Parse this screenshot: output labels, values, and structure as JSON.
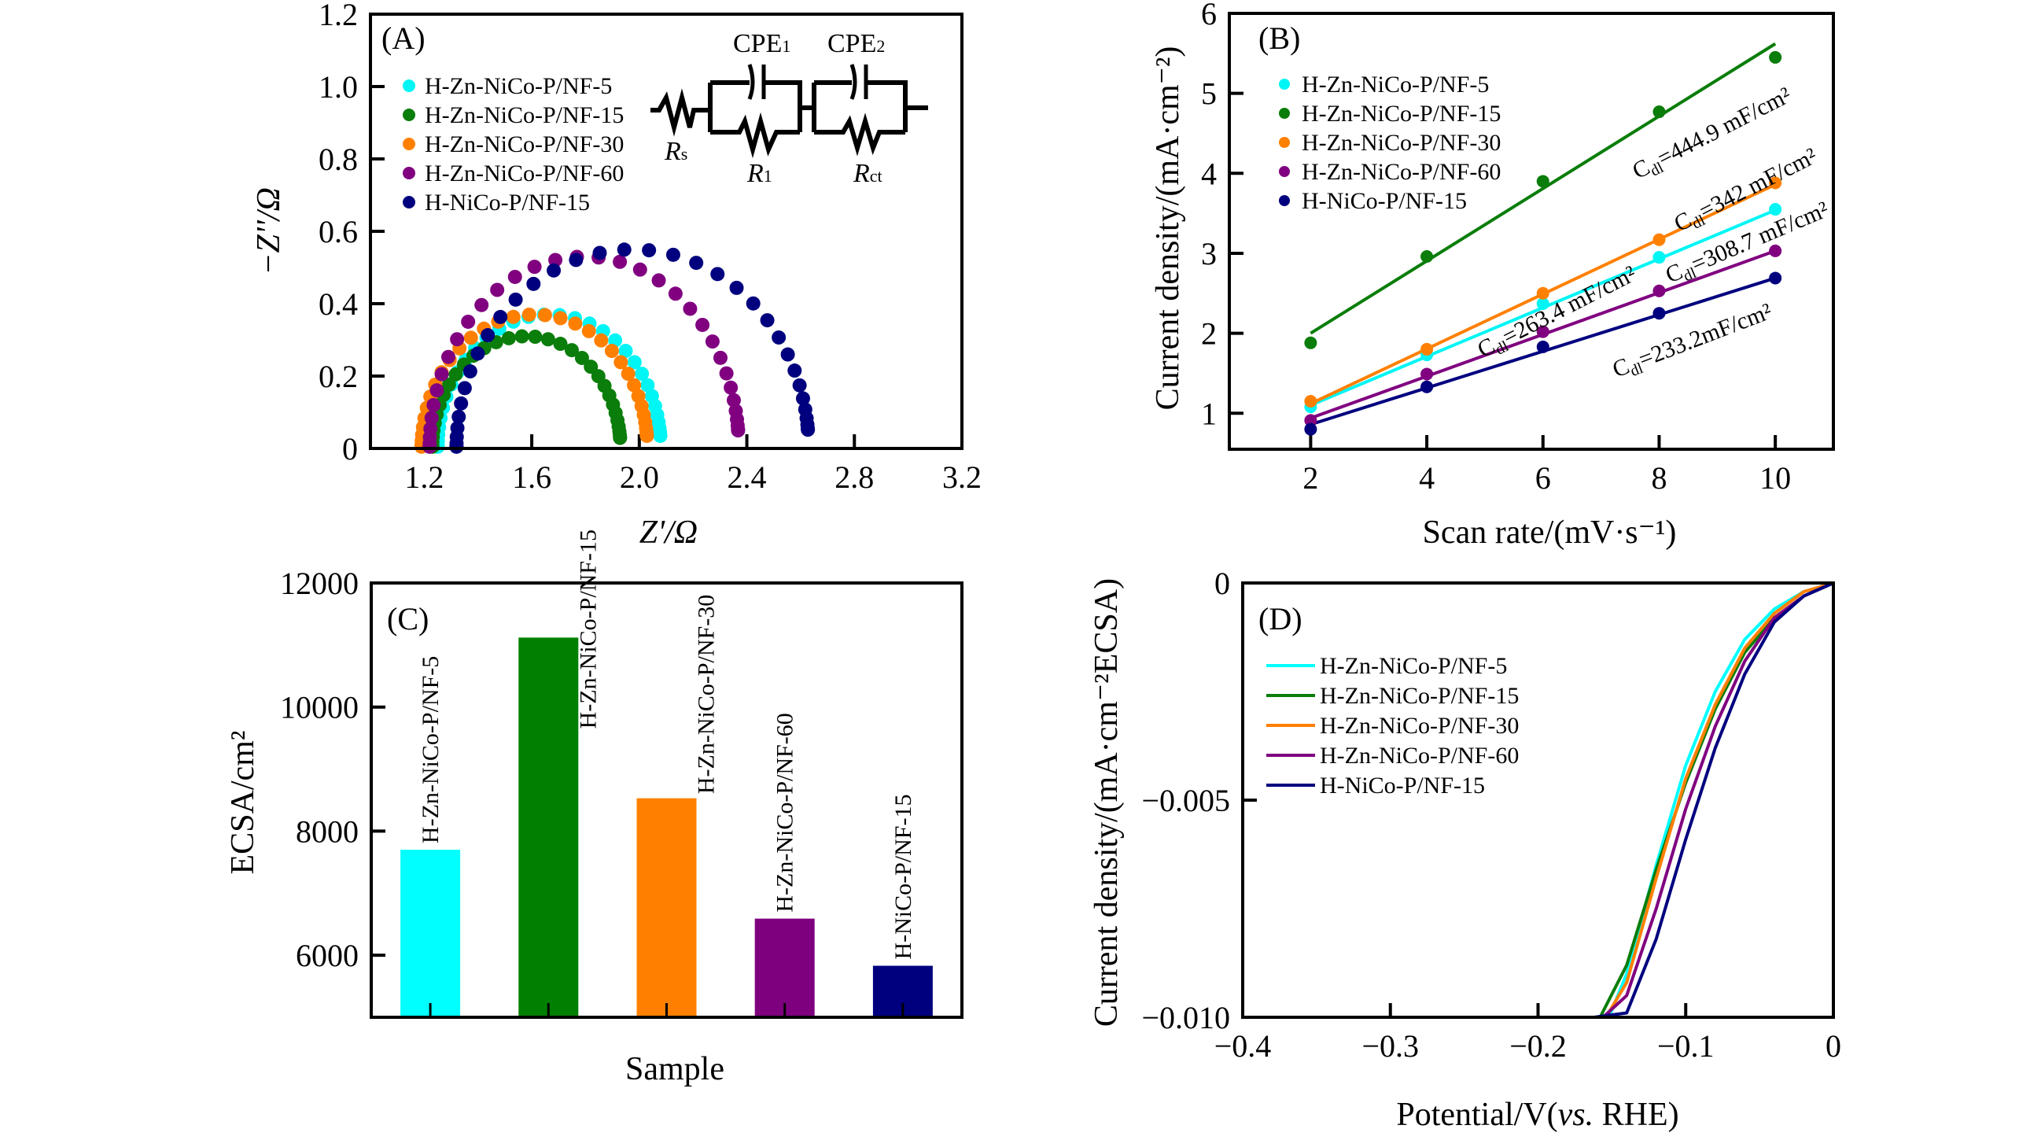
{
  "figure": {
    "series_names": [
      "H-Zn-NiCo-P/NF-5",
      "H-Zn-NiCo-P/NF-15",
      "H-Zn-NiCo-P/NF-30",
      "H-Zn-NiCo-P/NF-60",
      "H-NiCo-P/NF-15"
    ],
    "series_colors": [
      "#00f5f5",
      "#0a7d0a",
      "#ff8000",
      "#800080",
      "#00007f"
    ]
  },
  "chart_data": [
    {
      "id": "A",
      "type": "scatter",
      "panel_label": "(A)",
      "title": "",
      "xlabel": "Z'/Ω",
      "ylabel": "−Z''/Ω",
      "xlim": [
        1.0,
        3.2
      ],
      "ylim": [
        0,
        1.2
      ],
      "xticks": [
        "1.2",
        "1.6",
        "2.0",
        "2.4",
        "2.8",
        "3.2"
      ],
      "xtick_values": [
        1.2,
        1.6,
        2.0,
        2.4,
        2.8,
        3.2
      ],
      "yticks": [
        "0",
        "0.2",
        "0.4",
        "0.6",
        "0.8",
        "1.0",
        "1.2"
      ],
      "ytick_values": [
        0,
        0.2,
        0.4,
        0.6,
        0.8,
        1.0,
        1.2
      ],
      "grid": false,
      "legend": "top-left",
      "circuit": {
        "labels": [
          "CPE1",
          "CPE2",
          "Rs",
          "R1",
          "Rct"
        ],
        "cpe1_main": "CPE",
        "cpe1_sub": "1",
        "cpe2_main": "CPE",
        "cpe2_sub": "2",
        "rs_main": "R",
        "rs_sub": "s",
        "r1_main": "R",
        "r1_sub": "1",
        "rct_main": "R",
        "rct_sub": "ct"
      },
      "series": [
        {
          "name": "H-Zn-NiCo-P/NF-5",
          "color": "#00f5f5",
          "arc": {
            "z_start": 1.25,
            "z_end": 2.08,
            "peak": 0.37
          }
        },
        {
          "name": "H-Zn-NiCo-P/NF-15",
          "color": "#0a7d0a",
          "arc": {
            "z_start": 1.23,
            "z_end": 1.93,
            "peak": 0.31
          }
        },
        {
          "name": "H-Zn-NiCo-P/NF-30",
          "color": "#ff8000",
          "arc": {
            "z_start": 1.19,
            "z_end": 2.03,
            "peak": 0.37
          }
        },
        {
          "name": "H-Zn-NiCo-P/NF-60",
          "color": "#800080",
          "arc": {
            "z_start": 1.22,
            "z_end": 2.37,
            "peak": 0.53
          }
        },
        {
          "name": "H-NiCo-P/NF-15",
          "color": "#00007f",
          "arc": {
            "z_start": 1.32,
            "z_end": 2.63,
            "peak": 0.55
          }
        }
      ]
    },
    {
      "id": "B",
      "type": "scatter",
      "panel_label": "(B)",
      "title": "",
      "xlabel": "Scan rate/(mV·s⁻¹)",
      "ylabel": "Current density/(mA·cm⁻²)",
      "xlim": [
        0.6,
        11
      ],
      "ylim": [
        0.55,
        6
      ],
      "xticks": [
        "2",
        "4",
        "6",
        "8",
        "10"
      ],
      "xtick_values": [
        2,
        4,
        6,
        8,
        10
      ],
      "yticks": [
        "1",
        "2",
        "3",
        "4",
        "5",
        "6"
      ],
      "ytick_values": [
        1,
        2,
        3,
        4,
        5,
        6
      ],
      "grid": false,
      "legend": "top-left",
      "x": [
        2,
        4,
        6,
        8,
        10
      ],
      "series": [
        {
          "name": "H-Zn-NiCo-P/NF-5",
          "color": "#00f5f5",
          "values": [
            1.08,
            1.73,
            2.37,
            2.95,
            3.55
          ],
          "fit": [
            1.1,
            3.54
          ],
          "annotation": "C",
          "annotation_sub": "dl",
          "annotation_rest": "=263.4 mF/cm²"
        },
        {
          "name": "H-Zn-NiCo-P/NF-15",
          "color": "#0a7d0a",
          "values": [
            1.88,
            2.96,
            3.9,
            4.77,
            5.45
          ],
          "fit": [
            2.0,
            5.62
          ],
          "annotation": "C",
          "annotation_sub": "dl",
          "annotation_rest": "=444.9 mF/cm²"
        },
        {
          "name": "H-Zn-NiCo-P/NF-30",
          "color": "#ff8000",
          "values": [
            1.15,
            1.8,
            2.5,
            3.17,
            3.88
          ],
          "fit": [
            1.12,
            3.86
          ],
          "annotation": "C",
          "annotation_sub": "dl",
          "annotation_rest": "=342 mF/cm²"
        },
        {
          "name": "H-Zn-NiCo-P/NF-60",
          "color": "#800080",
          "values": [
            0.91,
            1.49,
            2.02,
            2.53,
            3.03
          ],
          "fit": [
            0.94,
            3.03
          ],
          "annotation": "C",
          "annotation_sub": "dl",
          "annotation_rest": "=308.7 mF/cm²"
        },
        {
          "name": "H-NiCo-P/NF-15",
          "color": "#00007f",
          "values": [
            0.8,
            1.33,
            1.83,
            2.25,
            2.69
          ],
          "fit": [
            0.86,
            2.69
          ],
          "annotation": "C",
          "annotation_sub": "dl",
          "annotation_rest": "=233.2mF/cm²"
        }
      ]
    },
    {
      "id": "C",
      "type": "bar",
      "panel_label": "(C)",
      "title": "",
      "xlabel": "Sample",
      "ylabel": "ECSA/cm²",
      "ylim": [
        5000,
        12000
      ],
      "yticks": [
        "6000",
        "8000",
        "10000",
        "12000"
      ],
      "ytick_values": [
        6000,
        8000,
        10000,
        12000
      ],
      "grid": false,
      "categories": [
        "H-Zn-NiCo-P/NF-5",
        "H-Zn-NiCo-P/NF-15",
        "H-Zn-NiCo-P/NF-30",
        "H-Zn-NiCo-P/NF-60",
        "H-NiCo-P/NF-15"
      ],
      "values": [
        7700,
        11120,
        8530,
        6590,
        5830
      ],
      "colors": [
        "#00ffff",
        "#007f00",
        "#ff8000",
        "#7f007f",
        "#00007f"
      ]
    },
    {
      "id": "D",
      "type": "line",
      "panel_label": "(D)",
      "title": "",
      "xlabel": "Potential/V(vs. RHE)",
      "xlabel_main": "Potential/V(",
      "xlabel_italic": "vs.",
      "xlabel_end": " RHE)",
      "ylabel": "Current density/(mA·cm⁻²ECSA)",
      "xlim": [
        -0.4,
        0
      ],
      "ylim": [
        -0.01,
        0
      ],
      "xticks": [
        "−0.4",
        "−0.3",
        "−0.2",
        "−0.1",
        "0"
      ],
      "xtick_values": [
        -0.4,
        -0.3,
        -0.2,
        -0.1,
        0
      ],
      "yticks": [
        "−0.010",
        "−0.005",
        "0"
      ],
      "ytick_values": [
        -0.01,
        -0.005,
        0
      ],
      "grid": false,
      "legend": "top-left",
      "series": [
        {
          "name": "H-Zn-NiCo-P/NF-5",
          "color": "#00ffff",
          "x": [
            0,
            -0.02,
            -0.04,
            -0.06,
            -0.08,
            -0.1,
            -0.12,
            -0.14,
            -0.152
          ],
          "y": [
            0,
            -0.0002,
            -0.0006,
            -0.0013,
            -0.0025,
            -0.0042,
            -0.0065,
            -0.009,
            -0.01
          ]
        },
        {
          "name": "H-Zn-NiCo-P/NF-15",
          "color": "#0a7d0a",
          "x": [
            0,
            -0.02,
            -0.04,
            -0.06,
            -0.08,
            -0.1,
            -0.12,
            -0.14,
            -0.158
          ],
          "y": [
            0,
            -0.0003,
            -0.0008,
            -0.0016,
            -0.0029,
            -0.0046,
            -0.0066,
            -0.0088,
            -0.01
          ]
        },
        {
          "name": "H-Zn-NiCo-P/NF-30",
          "color": "#ff8000",
          "x": [
            0,
            -0.02,
            -0.04,
            -0.06,
            -0.08,
            -0.1,
            -0.12,
            -0.14,
            -0.154
          ],
          "y": [
            0,
            -0.0002,
            -0.0007,
            -0.0015,
            -0.0028,
            -0.0045,
            -0.0068,
            -0.0092,
            -0.01
          ]
        },
        {
          "name": "H-Zn-NiCo-P/NF-60",
          "color": "#800080",
          "x": [
            0,
            -0.02,
            -0.04,
            -0.06,
            -0.08,
            -0.1,
            -0.12,
            -0.14,
            -0.156
          ],
          "y": [
            0,
            -0.0003,
            -0.0008,
            -0.0018,
            -0.0033,
            -0.0052,
            -0.0075,
            -0.0095,
            -0.01
          ]
        },
        {
          "name": "H-NiCo-P/NF-15",
          "color": "#00007f",
          "x": [
            0,
            -0.02,
            -0.04,
            -0.06,
            -0.08,
            -0.1,
            -0.12,
            -0.14,
            -0.162
          ],
          "y": [
            0,
            -0.0003,
            -0.0009,
            -0.0021,
            -0.0038,
            -0.0059,
            -0.0082,
            -0.0099,
            -0.01
          ]
        }
      ]
    }
  ]
}
